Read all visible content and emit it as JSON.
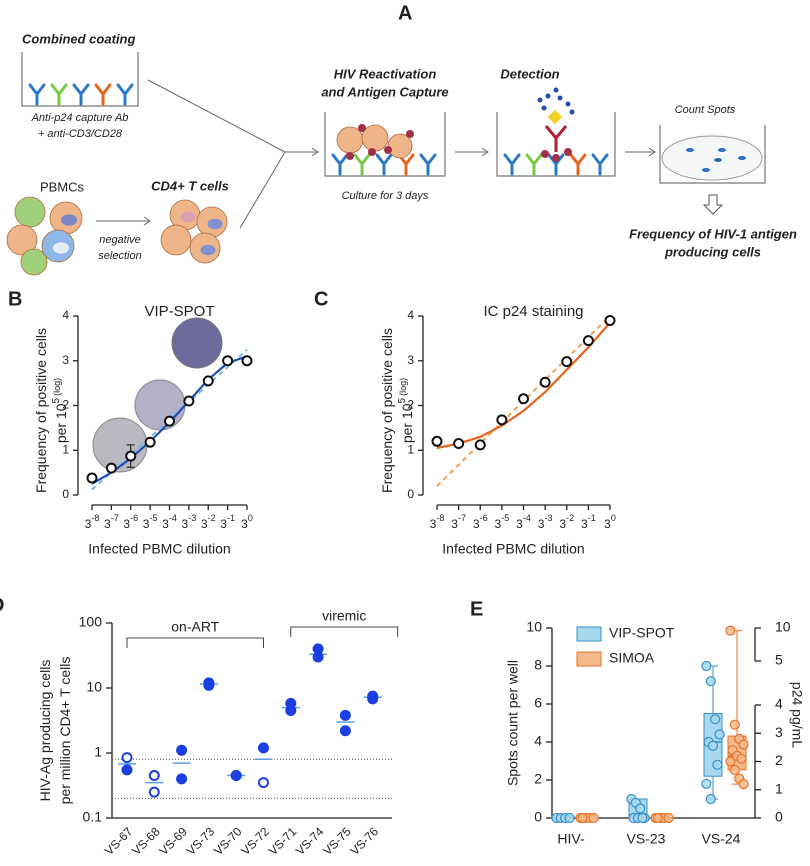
{
  "diagram": {
    "letter": "A",
    "coating_title": "Combined coating",
    "coating_lines": [
      "Anti-p24 capture Ab",
      "+ anti-CD3/CD28"
    ],
    "pbmc": "PBMCs",
    "selection_lines": [
      "negative",
      "selection"
    ],
    "cd4": "CD4+ T cells",
    "capture_lines": [
      "HIV Reactivation",
      "and Antigen Capture"
    ],
    "culture": "Culture for 3 days",
    "detection": "Detection",
    "count": "Count Spots",
    "result_lines": [
      "Frequency of HIV-1 antigen",
      "producing cells"
    ]
  },
  "chart_data": [
    {
      "type": "line",
      "letter": "B",
      "title": "VIP-SPOT",
      "x_label": "Infected PBMC dilution",
      "y_label_lines": [
        "Frequency of positive cells",
        "per 10"
      ],
      "y_label_sup": "5",
      "y_label_tail": "(log)",
      "xtick_base": "3",
      "xlim": [
        -8,
        0
      ],
      "xticks": [
        -8,
        -7,
        -6,
        -5,
        -4,
        -3,
        -2,
        -1,
        0
      ],
      "ylim": [
        0,
        4
      ],
      "yticks": [
        0,
        1,
        2,
        3,
        4
      ],
      "x": [
        -8,
        -7,
        -6,
        -5,
        -4,
        -3,
        -2,
        -1,
        0
      ],
      "points": {
        "color": "#111111",
        "values": [
          0.38,
          0.6,
          0.87,
          1.18,
          1.65,
          2.1,
          2.55,
          3.0,
          3.0
        ],
        "errors": [
          0.08,
          null,
          0.25,
          null,
          null,
          null,
          null,
          null,
          null
        ]
      },
      "fit": {
        "color": "#1f4fb4",
        "values": [
          0.25,
          0.5,
          0.82,
          1.2,
          1.62,
          2.1,
          2.58,
          2.95,
          3.1
        ]
      },
      "trend": {
        "color": "#7fb6e6",
        "x": [
          -8,
          0
        ],
        "values": [
          0.12,
          3.25
        ]
      }
    },
    {
      "type": "line",
      "letter": "C",
      "title": "IC p24 staining",
      "x_label": "Infected PBMC dilution",
      "y_label_lines": [
        "Frequency of positive cells",
        "per 10"
      ],
      "y_label_sup": "5",
      "y_label_tail": "(log)",
      "xtick_base": "3",
      "xlim": [
        -8,
        0
      ],
      "xticks": [
        -8,
        -7,
        -6,
        -5,
        -4,
        -3,
        -2,
        -1,
        0
      ],
      "ylim": [
        0,
        4
      ],
      "yticks": [
        0,
        1,
        2,
        3,
        4
      ],
      "x": [
        -8,
        -7,
        -6,
        -5,
        -4,
        -3,
        -2,
        -1,
        0
      ],
      "points": {
        "color": "#111111",
        "values": [
          1.2,
          1.15,
          1.12,
          1.68,
          2.15,
          2.52,
          2.98,
          3.45,
          3.9
        ],
        "errors": [
          null,
          null,
          null,
          null,
          null,
          null,
          null,
          null,
          null
        ]
      },
      "fit": {
        "color": "#e8641e",
        "values": [
          1.05,
          1.15,
          1.3,
          1.55,
          1.88,
          2.3,
          2.8,
          3.3,
          3.85
        ]
      },
      "trend": {
        "color": "#f0a050",
        "x": [
          -8,
          0
        ],
        "values": [
          0.2,
          4.0
        ]
      }
    },
    {
      "type": "dot",
      "letter": "D",
      "y_label_lines": [
        "HIV-Ag producing cells",
        "per million CD4+ T cells"
      ],
      "log_scale": true,
      "ylim": [
        0.1,
        100
      ],
      "yticks": [
        0.1,
        1,
        10,
        100
      ],
      "color": "#1b3fe0",
      "categories": [
        "VS-67",
        "VS-68",
        "VS-69",
        "VS-73",
        "VS-70",
        "VS-72",
        "VS-71",
        "VS-74",
        "VS-75",
        "VS-76"
      ],
      "values": [
        [
          0.85,
          0.55
        ],
        [
          0.45,
          0.25
        ],
        [
          1.1,
          0.4
        ],
        [
          12,
          11
        ],
        [
          0.45,
          0.45
        ],
        [
          1.2,
          0.35
        ],
        [
          5.8,
          4.5
        ],
        [
          40,
          30
        ],
        [
          3.8,
          2.2
        ],
        [
          7.5,
          6.8
        ]
      ],
      "hollow": [
        [
          true,
          false
        ],
        [
          true,
          true
        ],
        [
          false,
          false
        ],
        [
          false,
          false
        ],
        [
          false,
          false
        ],
        [
          false,
          true
        ],
        [
          false,
          false
        ],
        [
          false,
          false
        ],
        [
          false,
          false
        ],
        [
          false,
          false
        ]
      ],
      "means": [
        0.68,
        0.35,
        0.7,
        11.5,
        0.45,
        0.8,
        5,
        33,
        3,
        7.2
      ],
      "reference_lines": [
        0.8,
        0.2
      ],
      "groups": [
        {
          "label": "on-ART",
          "from": 0,
          "to": 5
        },
        {
          "label": "viremic",
          "from": 6,
          "to": 9
        }
      ]
    },
    {
      "type": "box",
      "letter": "E",
      "categories": [
        "HIV-",
        "VS-23",
        "VS-24"
      ],
      "y_label": "Spots count per well",
      "y2_label": "p24 pg/mL",
      "ylim": [
        0,
        10
      ],
      "yticks": [
        0,
        2,
        4,
        6,
        8,
        10
      ],
      "y2lim": [
        0,
        10
      ],
      "y2_break": [
        4,
        5
      ],
      "y2ticks": [
        0,
        1,
        2,
        3,
        4,
        5,
        10
      ],
      "legend": "top-left",
      "series": [
        {
          "name": "VIP-SPOT",
          "color": "#a6d8f0",
          "edge": "#3b8fc4",
          "axis": "y",
          "boxes": [
            {
              "min": 0,
              "q1": 0,
              "median": 0,
              "q3": 0,
              "max": 0
            },
            {
              "min": 0,
              "q1": 0,
              "median": 0,
              "q3": 1,
              "max": 1
            },
            {
              "min": 1,
              "q1": 2.2,
              "median": 4,
              "q3": 5.5,
              "max": 8
            }
          ],
          "points": [
            [
              0,
              0,
              0,
              0
            ],
            [
              1,
              0.8,
              0.5,
              0,
              0,
              0,
              0
            ],
            [
              8,
              7.2,
              5.2,
              4.4,
              4.0,
              3.8,
              2.8,
              1.8,
              1.0
            ]
          ]
        },
        {
          "name": "SIMOA",
          "color": "#f6b98a",
          "edge": "#e8732a",
          "axis": "y2",
          "boxes": [
            {
              "min": 0,
              "q1": 0,
              "median": 0,
              "q3": 0,
              "max": 0
            },
            {
              "min": 0,
              "q1": 0,
              "median": 0,
              "q3": 0,
              "max": 0
            },
            {
              "min": 1.2,
              "q1": 1.7,
              "median": 2.2,
              "q3": 2.9,
              "max": 9.6
            }
          ],
          "points": [
            [
              0,
              0,
              0,
              0,
              0
            ],
            [
              0,
              0,
              0,
              0,
              0
            ],
            [
              9.6,
              3.3,
              2.8,
              2.6,
              2.4,
              2.2,
              2.1,
              2.0,
              1.7,
              1.4,
              1.2
            ]
          ]
        }
      ]
    }
  ]
}
